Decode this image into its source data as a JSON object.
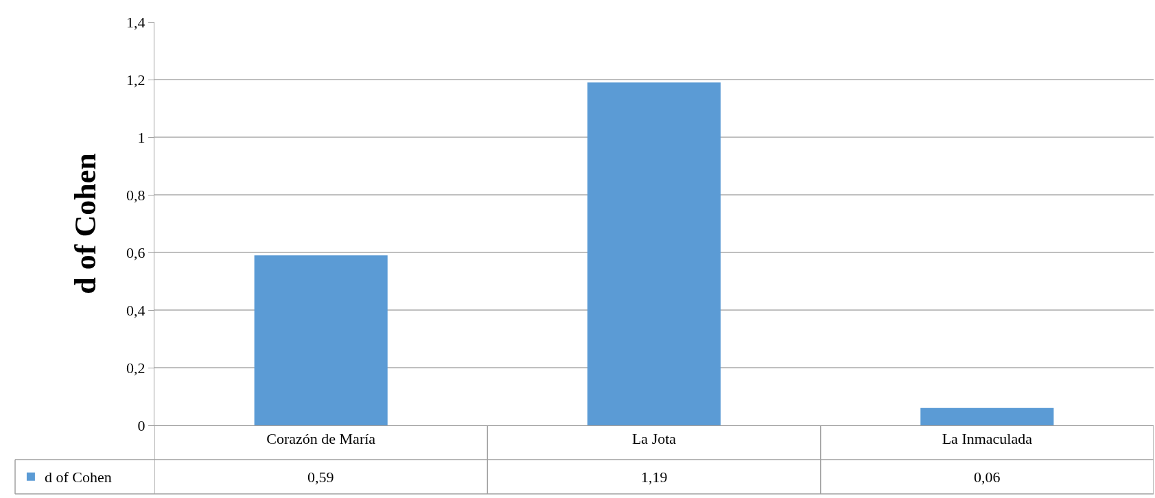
{
  "chart_data": {
    "type": "bar",
    "ylabel": "d of Cohen",
    "categories": [
      "Corazón de María",
      "La Jota",
      "La Inmaculada"
    ],
    "series": [
      {
        "name": "d of Cohen",
        "color": "#5b9bd5",
        "values": [
          0.59,
          1.19,
          0.06
        ],
        "value_labels": [
          "0,59",
          "1,19",
          "0,06"
        ]
      }
    ],
    "ylim": [
      0,
      1.4
    ],
    "yticks": [
      0,
      {
        "value": 0.2,
        "label": "0,2"
      },
      {
        "value": 0.4,
        "label": "0,4"
      },
      {
        "value": 0.6,
        "label": "0,6"
      },
      {
        "value": 0.8,
        "label": "0,8"
      },
      1,
      {
        "value": 1.2,
        "label": "1,2"
      },
      {
        "value": 1.4,
        "label": "1,4"
      }
    ],
    "grid": "y",
    "legend": "bottom left"
  }
}
